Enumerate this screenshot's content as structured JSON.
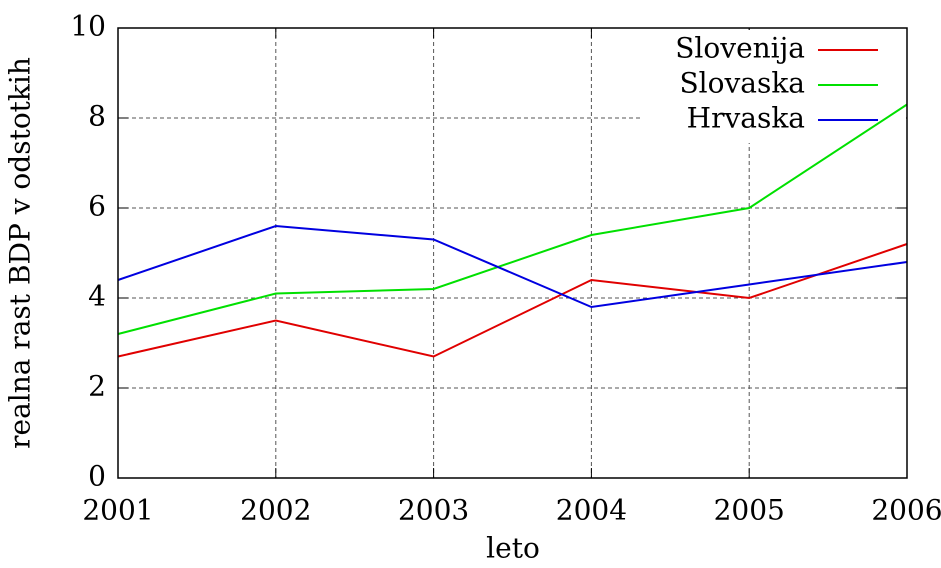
{
  "chart_data": {
    "type": "line",
    "x_label": "leto",
    "y_label": "realna rast BDP v odstotkih",
    "x": [
      2001,
      2002,
      2003,
      2004,
      2005,
      2006
    ],
    "series": [
      {
        "name": "Slovenija",
        "color": "#e00000",
        "values": [
          2.7,
          3.5,
          2.7,
          4.4,
          4.0,
          5.2
        ]
      },
      {
        "name": "Slovaska",
        "color": "#00e000",
        "values": [
          3.2,
          4.1,
          4.2,
          5.4,
          6.0,
          8.3
        ]
      },
      {
        "name": "Hrvaska",
        "color": "#0000e0",
        "values": [
          4.4,
          5.6,
          5.3,
          3.8,
          4.3,
          4.8
        ]
      }
    ],
    "xlim": [
      2001,
      2006
    ],
    "xticks": [
      2001,
      2002,
      2003,
      2004,
      2005,
      2006
    ],
    "ylim": [
      0,
      10
    ],
    "yticks": [
      0,
      2,
      4,
      6,
      8,
      10
    ],
    "grid": true,
    "legend": "upper right"
  }
}
